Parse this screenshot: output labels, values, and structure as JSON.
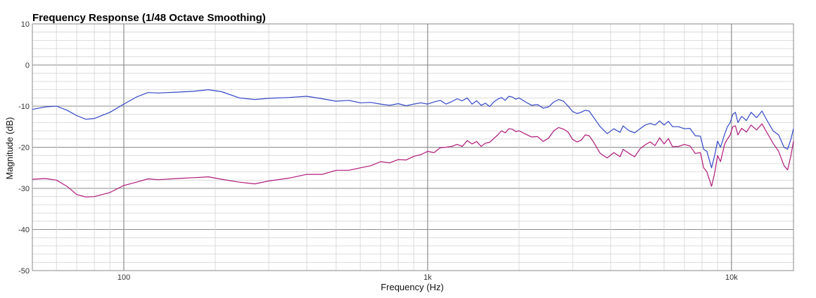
{
  "chart_data": {
    "type": "line",
    "title": "Frequency Response (1/48 Octave Smoothing)",
    "xlabel": "Frequency (Hz)",
    "ylabel": "Magnitude (dB)",
    "x_scale": "log",
    "xlim": [
      50,
      16000
    ],
    "ylim": [
      -50,
      10
    ],
    "x_ticks": [
      {
        "value": 100,
        "label": "100"
      },
      {
        "value": 1000,
        "label": "1k"
      },
      {
        "value": 10000,
        "label": "10k"
      }
    ],
    "y_ticks": [
      {
        "value": 10,
        "label": "10"
      },
      {
        "value": 0,
        "label": "0"
      },
      {
        "value": -10,
        "label": "-10"
      },
      {
        "value": -20,
        "label": "-20"
      },
      {
        "value": -30,
        "label": "-30"
      },
      {
        "value": -40,
        "label": "-40"
      },
      {
        "value": -50,
        "label": "-50"
      }
    ],
    "grid": true,
    "series": [
      {
        "color": "#3347c8",
        "points": [
          [
            50,
            -10.8
          ],
          [
            55,
            -10.2
          ],
          [
            60,
            -10.0
          ],
          [
            65,
            -11.0
          ],
          [
            70,
            -12.3
          ],
          [
            75,
            -13.2
          ],
          [
            80,
            -13.0
          ],
          [
            90,
            -11.5
          ],
          [
            100,
            -9.5
          ],
          [
            110,
            -7.8
          ],
          [
            120,
            -6.7
          ],
          [
            130,
            -6.8
          ],
          [
            150,
            -6.6
          ],
          [
            170,
            -6.4
          ],
          [
            190,
            -6.0
          ],
          [
            210,
            -6.5
          ],
          [
            240,
            -8.0
          ],
          [
            270,
            -8.4
          ],
          [
            300,
            -8.1
          ],
          [
            350,
            -7.9
          ],
          [
            400,
            -7.6
          ],
          [
            450,
            -8.2
          ],
          [
            500,
            -8.8
          ],
          [
            550,
            -8.6
          ],
          [
            600,
            -9.2
          ],
          [
            650,
            -9.1
          ],
          [
            700,
            -9.5
          ],
          [
            750,
            -9.8
          ],
          [
            800,
            -9.4
          ],
          [
            850,
            -9.9
          ],
          [
            900,
            -9.5
          ],
          [
            950,
            -9.2
          ],
          [
            1000,
            -9.5
          ],
          [
            1050,
            -9.0
          ],
          [
            1100,
            -8.6
          ],
          [
            1150,
            -9.5
          ],
          [
            1200,
            -8.9
          ],
          [
            1250,
            -8.2
          ],
          [
            1300,
            -8.7
          ],
          [
            1350,
            -8.0
          ],
          [
            1400,
            -9.5
          ],
          [
            1450,
            -8.7
          ],
          [
            1500,
            -9.8
          ],
          [
            1550,
            -9.3
          ],
          [
            1600,
            -10.1
          ],
          [
            1650,
            -9.0
          ],
          [
            1700,
            -8.3
          ],
          [
            1750,
            -7.9
          ],
          [
            1800,
            -8.6
          ],
          [
            1850,
            -7.6
          ],
          [
            1900,
            -7.8
          ],
          [
            1950,
            -8.3
          ],
          [
            2000,
            -8.0
          ],
          [
            2100,
            -9.0
          ],
          [
            2200,
            -9.8
          ],
          [
            2300,
            -9.6
          ],
          [
            2400,
            -10.5
          ],
          [
            2500,
            -10.2
          ],
          [
            2600,
            -9.0
          ],
          [
            2700,
            -8.4
          ],
          [
            2800,
            -8.8
          ],
          [
            2900,
            -10.0
          ],
          [
            3000,
            -11.3
          ],
          [
            3100,
            -11.8
          ],
          [
            3200,
            -11.5
          ],
          [
            3300,
            -11.0
          ],
          [
            3400,
            -11.2
          ],
          [
            3500,
            -12.5
          ],
          [
            3700,
            -15.0
          ],
          [
            3900,
            -16.7
          ],
          [
            4100,
            -15.5
          ],
          [
            4300,
            -16.4
          ],
          [
            4400,
            -14.8
          ],
          [
            4600,
            -16.0
          ],
          [
            4800,
            -16.5
          ],
          [
            5000,
            -15.5
          ],
          [
            5200,
            -14.6
          ],
          [
            5400,
            -14.2
          ],
          [
            5600,
            -14.6
          ],
          [
            5800,
            -13.6
          ],
          [
            6000,
            -14.6
          ],
          [
            6200,
            -13.7
          ],
          [
            6400,
            -15.0
          ],
          [
            6700,
            -15.0
          ],
          [
            7000,
            -15.5
          ],
          [
            7300,
            -15.4
          ],
          [
            7600,
            -17.2
          ],
          [
            7900,
            -17.3
          ],
          [
            8100,
            -20.5
          ],
          [
            8300,
            -21.0
          ],
          [
            8600,
            -25.0
          ],
          [
            8800,
            -22.0
          ],
          [
            9000,
            -18.5
          ],
          [
            9200,
            -20.0
          ],
          [
            9500,
            -16.8
          ],
          [
            9700,
            -15.0
          ],
          [
            9900,
            -14.0
          ],
          [
            10100,
            -12.0
          ],
          [
            10300,
            -11.5
          ],
          [
            10500,
            -14.0
          ],
          [
            10800,
            -12.5
          ],
          [
            11200,
            -13.5
          ],
          [
            11600,
            -11.5
          ],
          [
            12100,
            -12.8
          ],
          [
            12600,
            -11.2
          ],
          [
            13100,
            -13.5
          ],
          [
            13700,
            -16.0
          ],
          [
            14300,
            -17.0
          ],
          [
            14900,
            -20.0
          ],
          [
            15300,
            -20.5
          ],
          [
            15700,
            -18.0
          ],
          [
            16000,
            -15.5
          ]
        ]
      },
      {
        "color": "#b0187a",
        "points": [
          [
            50,
            -27.8
          ],
          [
            55,
            -27.6
          ],
          [
            60,
            -28.0
          ],
          [
            65,
            -29.5
          ],
          [
            70,
            -31.5
          ],
          [
            75,
            -32.1
          ],
          [
            80,
            -32.0
          ],
          [
            90,
            -31.0
          ],
          [
            100,
            -29.3
          ],
          [
            110,
            -28.5
          ],
          [
            120,
            -27.7
          ],
          [
            130,
            -27.9
          ],
          [
            150,
            -27.6
          ],
          [
            170,
            -27.4
          ],
          [
            190,
            -27.2
          ],
          [
            210,
            -27.8
          ],
          [
            240,
            -28.5
          ],
          [
            270,
            -28.9
          ],
          [
            300,
            -28.2
          ],
          [
            350,
            -27.5
          ],
          [
            400,
            -26.6
          ],
          [
            450,
            -26.6
          ],
          [
            500,
            -25.6
          ],
          [
            550,
            -25.6
          ],
          [
            600,
            -25.0
          ],
          [
            650,
            -24.5
          ],
          [
            700,
            -23.5
          ],
          [
            750,
            -23.8
          ],
          [
            800,
            -23.0
          ],
          [
            850,
            -23.1
          ],
          [
            900,
            -22.2
          ],
          [
            950,
            -21.8
          ],
          [
            1000,
            -21.0
          ],
          [
            1050,
            -21.3
          ],
          [
            1100,
            -20.1
          ],
          [
            1150,
            -20.0
          ],
          [
            1200,
            -19.8
          ],
          [
            1250,
            -19.3
          ],
          [
            1300,
            -19.8
          ],
          [
            1350,
            -18.4
          ],
          [
            1400,
            -19.2
          ],
          [
            1450,
            -18.6
          ],
          [
            1500,
            -19.8
          ],
          [
            1550,
            -19.0
          ],
          [
            1600,
            -18.8
          ],
          [
            1650,
            -17.9
          ],
          [
            1700,
            -17.0
          ],
          [
            1750,
            -16.0
          ],
          [
            1800,
            -16.5
          ],
          [
            1850,
            -15.5
          ],
          [
            1900,
            -15.6
          ],
          [
            1950,
            -16.2
          ],
          [
            2000,
            -16.0
          ],
          [
            2100,
            -16.8
          ],
          [
            2200,
            -17.5
          ],
          [
            2300,
            -17.4
          ],
          [
            2400,
            -18.6
          ],
          [
            2500,
            -17.8
          ],
          [
            2600,
            -16.0
          ],
          [
            2700,
            -15.2
          ],
          [
            2800,
            -15.6
          ],
          [
            2900,
            -16.3
          ],
          [
            3000,
            -18.1
          ],
          [
            3100,
            -18.7
          ],
          [
            3200,
            -18.3
          ],
          [
            3300,
            -17.0
          ],
          [
            3400,
            -17.2
          ],
          [
            3500,
            -18.5
          ],
          [
            3700,
            -21.5
          ],
          [
            3900,
            -22.6
          ],
          [
            4100,
            -21.3
          ],
          [
            4300,
            -22.3
          ],
          [
            4400,
            -20.5
          ],
          [
            4600,
            -21.5
          ],
          [
            4800,
            -22.3
          ],
          [
            5000,
            -20.4
          ],
          [
            5200,
            -19.4
          ],
          [
            5400,
            -18.7
          ],
          [
            5600,
            -19.6
          ],
          [
            5800,
            -17.7
          ],
          [
            6000,
            -19.2
          ],
          [
            6200,
            -17.9
          ],
          [
            6400,
            -19.9
          ],
          [
            6700,
            -19.8
          ],
          [
            7000,
            -19.3
          ],
          [
            7300,
            -19.7
          ],
          [
            7600,
            -21.5
          ],
          [
            7900,
            -21.3
          ],
          [
            8100,
            -25.0
          ],
          [
            8300,
            -26.0
          ],
          [
            8600,
            -29.5
          ],
          [
            8800,
            -26.3
          ],
          [
            9000,
            -22.0
          ],
          [
            9200,
            -23.5
          ],
          [
            9500,
            -19.2
          ],
          [
            9700,
            -18.0
          ],
          [
            9900,
            -17.0
          ],
          [
            10100,
            -15.0
          ],
          [
            10300,
            -14.8
          ],
          [
            10500,
            -17.0
          ],
          [
            10800,
            -15.4
          ],
          [
            11200,
            -16.3
          ],
          [
            11600,
            -14.6
          ],
          [
            12100,
            -15.8
          ],
          [
            12600,
            -14.3
          ],
          [
            13100,
            -16.5
          ],
          [
            13700,
            -19.0
          ],
          [
            14300,
            -21.0
          ],
          [
            14900,
            -24.5
          ],
          [
            15300,
            -25.5
          ],
          [
            15700,
            -22.0
          ],
          [
            16000,
            -18.5
          ]
        ]
      }
    ]
  }
}
